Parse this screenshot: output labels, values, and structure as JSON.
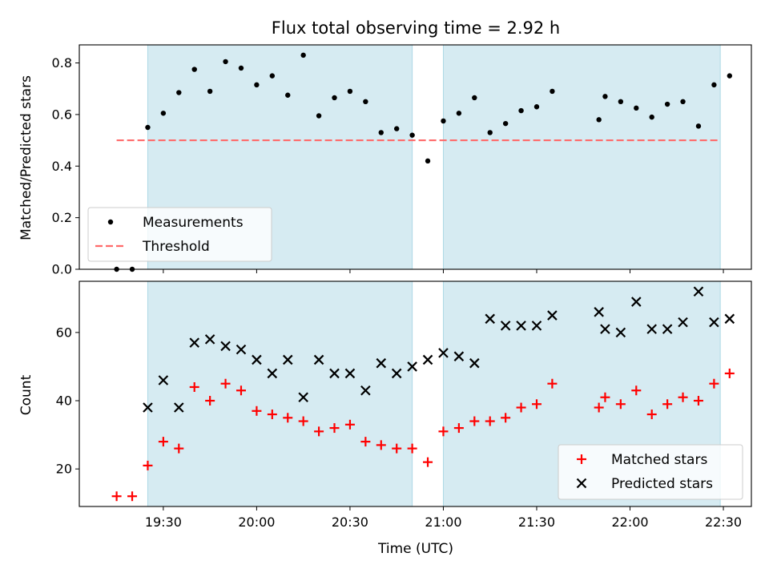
{
  "chart_data": {
    "type": "scatter",
    "title": "Flux total observing time = 2.92 h",
    "xlabel": "Time (UTC)",
    "x_range": [
      "19:03",
      "22:39"
    ],
    "x_ticks": [
      "19:30",
      "20:00",
      "20:30",
      "21:00",
      "21:30",
      "22:00",
      "22:30"
    ],
    "shaded_intervals": [
      [
        "19:25",
        "20:50"
      ],
      [
        "21:00",
        "22:29"
      ]
    ],
    "shade_color": "#add8e6",
    "panels": [
      {
        "ylabel": "Matched/Predicted stars",
        "ylim": [
          0,
          0.87
        ],
        "y_ticks": [
          0.0,
          0.2,
          0.4,
          0.6,
          0.8
        ],
        "legend": {
          "position": "lower-left",
          "entries": [
            "Measurements",
            "Threshold"
          ]
        },
        "threshold": {
          "name": "Threshold",
          "value": 0.5,
          "x_start": "19:15",
          "x_end": "22:29",
          "color": "#ff6b6b"
        },
        "series": [
          {
            "name": "Measurements",
            "marker": "dot",
            "color": "#000000",
            "points": [
              [
                "19:15",
                0.0
              ],
              [
                "19:20",
                0.0
              ],
              [
                "19:25",
                0.55
              ],
              [
                "19:30",
                0.605
              ],
              [
                "19:35",
                0.685
              ],
              [
                "19:40",
                0.775
              ],
              [
                "19:45",
                0.69
              ],
              [
                "19:50",
                0.805
              ],
              [
                "19:55",
                0.78
              ],
              [
                "20:00",
                0.715
              ],
              [
                "20:05",
                0.75
              ],
              [
                "20:10",
                0.675
              ],
              [
                "20:15",
                0.83
              ],
              [
                "20:20",
                0.595
              ],
              [
                "20:25",
                0.665
              ],
              [
                "20:30",
                0.69
              ],
              [
                "20:35",
                0.65
              ],
              [
                "20:40",
                0.53
              ],
              [
                "20:45",
                0.545
              ],
              [
                "20:50",
                0.52
              ],
              [
                "20:55",
                0.42
              ],
              [
                "21:00",
                0.575
              ],
              [
                "21:05",
                0.605
              ],
              [
                "21:10",
                0.665
              ],
              [
                "21:15",
                0.53
              ],
              [
                "21:20",
                0.565
              ],
              [
                "21:25",
                0.615
              ],
              [
                "21:30",
                0.63
              ],
              [
                "21:35",
                0.69
              ],
              [
                "21:50",
                0.58
              ],
              [
                "21:52",
                0.67
              ],
              [
                "21:57",
                0.65
              ],
              [
                "22:02",
                0.625
              ],
              [
                "22:07",
                0.59
              ],
              [
                "22:12",
                0.64
              ],
              [
                "22:17",
                0.65
              ],
              [
                "22:22",
                0.555
              ],
              [
                "22:27",
                0.715
              ],
              [
                "22:32",
                0.75
              ]
            ]
          }
        ]
      },
      {
        "ylabel": "Count",
        "ylim": [
          9,
          75
        ],
        "y_ticks": [
          20,
          40,
          60
        ],
        "legend": {
          "position": "lower-right",
          "entries": [
            "Matched stars",
            "Predicted stars"
          ]
        },
        "series": [
          {
            "name": "Matched stars",
            "marker": "plus",
            "color": "#ff0000",
            "points": [
              [
                "19:15",
                12
              ],
              [
                "19:20",
                12
              ],
              [
                "19:25",
                21
              ],
              [
                "19:30",
                28
              ],
              [
                "19:35",
                26
              ],
              [
                "19:40",
                44
              ],
              [
                "19:45",
                40
              ],
              [
                "19:50",
                45
              ],
              [
                "19:55",
                43
              ],
              [
                "20:00",
                37
              ],
              [
                "20:05",
                36
              ],
              [
                "20:10",
                35
              ],
              [
                "20:15",
                34
              ],
              [
                "20:20",
                31
              ],
              [
                "20:25",
                32
              ],
              [
                "20:30",
                33
              ],
              [
                "20:35",
                28
              ],
              [
                "20:40",
                27
              ],
              [
                "20:45",
                26
              ],
              [
                "20:50",
                26
              ],
              [
                "20:55",
                22
              ],
              [
                "21:00",
                31
              ],
              [
                "21:05",
                32
              ],
              [
                "21:10",
                34
              ],
              [
                "21:15",
                34
              ],
              [
                "21:20",
                35
              ],
              [
                "21:25",
                38
              ],
              [
                "21:30",
                39
              ],
              [
                "21:35",
                45
              ],
              [
                "21:50",
                38
              ],
              [
                "21:52",
                41
              ],
              [
                "21:57",
                39
              ],
              [
                "22:02",
                43
              ],
              [
                "22:07",
                36
              ],
              [
                "22:12",
                39
              ],
              [
                "22:17",
                41
              ],
              [
                "22:22",
                40
              ],
              [
                "22:27",
                45
              ],
              [
                "22:32",
                48
              ]
            ]
          },
          {
            "name": "Predicted stars",
            "marker": "x",
            "color": "#000000",
            "points": [
              [
                "19:25",
                38
              ],
              [
                "19:30",
                46
              ],
              [
                "19:35",
                38
              ],
              [
                "19:40",
                57
              ],
              [
                "19:45",
                58
              ],
              [
                "19:50",
                56
              ],
              [
                "19:55",
                55
              ],
              [
                "20:00",
                52
              ],
              [
                "20:05",
                48
              ],
              [
                "20:10",
                52
              ],
              [
                "20:15",
                41
              ],
              [
                "20:20",
                52
              ],
              [
                "20:25",
                48
              ],
              [
                "20:30",
                48
              ],
              [
                "20:35",
                43
              ],
              [
                "20:40",
                51
              ],
              [
                "20:45",
                48
              ],
              [
                "20:50",
                50
              ],
              [
                "20:55",
                52
              ],
              [
                "21:00",
                54
              ],
              [
                "21:05",
                53
              ],
              [
                "21:10",
                51
              ],
              [
                "21:15",
                64
              ],
              [
                "21:20",
                62
              ],
              [
                "21:25",
                62
              ],
              [
                "21:30",
                62
              ],
              [
                "21:35",
                65
              ],
              [
                "21:50",
                66
              ],
              [
                "21:52",
                61
              ],
              [
                "21:57",
                60
              ],
              [
                "22:02",
                69
              ],
              [
                "22:07",
                61
              ],
              [
                "22:12",
                61
              ],
              [
                "22:17",
                63
              ],
              [
                "22:22",
                72
              ],
              [
                "22:27",
                63
              ],
              [
                "22:32",
                64
              ]
            ]
          }
        ]
      }
    ]
  }
}
